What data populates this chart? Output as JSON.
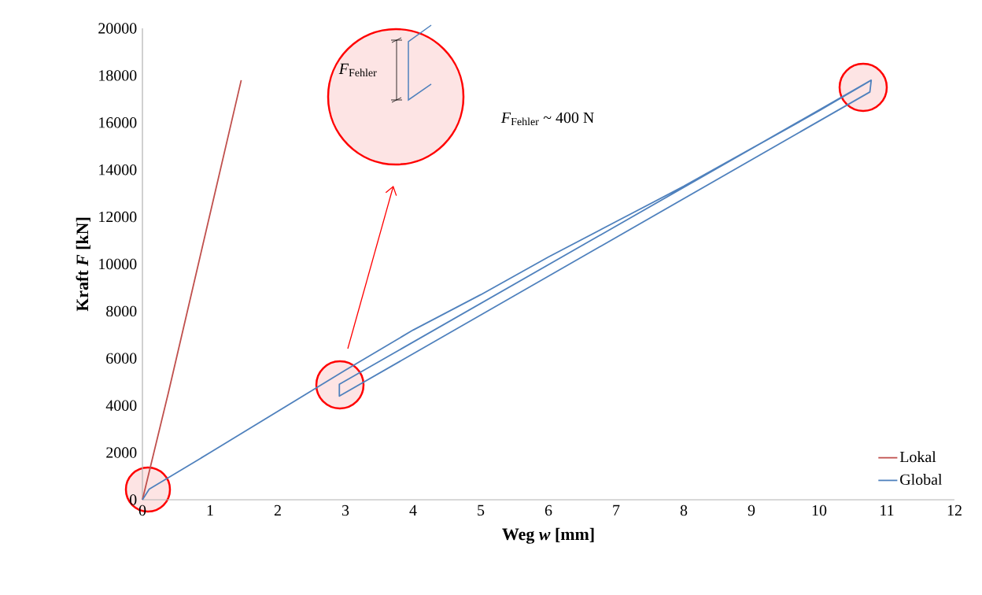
{
  "chart_data": {
    "type": "line",
    "xlabel": "Weg *w* [mm]",
    "ylabel": "Kraft *F* [kN]",
    "xlim": [
      0,
      12
    ],
    "ylim": [
      0,
      20000
    ],
    "xticks": [
      0,
      1,
      2,
      3,
      4,
      5,
      6,
      7,
      8,
      9,
      10,
      11,
      12
    ],
    "yticks": [
      0,
      2000,
      4000,
      6000,
      8000,
      10000,
      12000,
      14000,
      16000,
      18000,
      20000
    ],
    "grid": false,
    "legend": "bottom right",
    "line_style": "solid",
    "marker": "none",
    "series": [
      {
        "name": "Lokal",
        "color": "#c0504d",
        "x": [
          0,
          0.38,
          1.46
        ],
        "values": [
          0,
          4500,
          17800
        ]
      },
      {
        "name": "Global",
        "color": "#4f81bd",
        "x": [
          0,
          0.1,
          1,
          2,
          3,
          4,
          5,
          6,
          7,
          8,
          9,
          10,
          10.77,
          10.75,
          2.91,
          2.91,
          10.77
        ],
        "values": [
          0,
          450,
          2000,
          3750,
          5500,
          7200,
          8700,
          10300,
          11800,
          13300,
          14900,
          16500,
          17800,
          17300,
          4400,
          4900,
          17800
        ]
      }
    ],
    "annotations": [
      "*F*$_{Fehler}$",
      "*F*$_{Fehler}$ ~ 400 N"
    ]
  }
}
